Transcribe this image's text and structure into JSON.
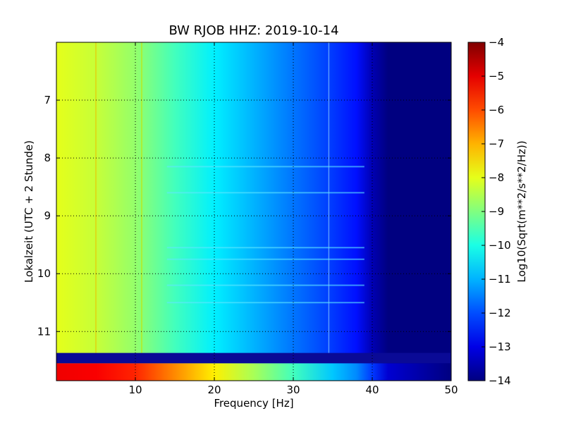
{
  "chart_data": {
    "type": "heatmap",
    "title": "BW RJOB HHZ: 2019-10-14",
    "xlabel": "Frequency [Hz]",
    "ylabel": "Lokalzeit (UTC + 2 Stunde)",
    "xlim": [
      0,
      50
    ],
    "ylim": [
      11.85,
      6.0
    ],
    "x_ticks": [
      10,
      20,
      30,
      40,
      50
    ],
    "y_ticks": [
      7,
      8,
      9,
      10,
      11
    ],
    "grid": true,
    "colormap": "jet",
    "colorbar": {
      "label": "Log10(Sqrt(m**2/s**2/Hz))",
      "range": [
        -14,
        -4
      ],
      "ticks": [
        -4,
        -5,
        -6,
        -7,
        -8,
        -9,
        -10,
        -11,
        -12,
        -13,
        -14
      ]
    },
    "profile_frequency_hz": [
      0,
      5,
      10,
      15,
      20,
      25,
      30,
      35,
      38,
      40,
      42,
      50
    ],
    "profile_log10_level": [
      -8.0,
      -8.3,
      -8.8,
      -9.6,
      -10.4,
      -11.0,
      -11.6,
      -12.2,
      -12.6,
      -13.5,
      -14.0,
      -14.0
    ],
    "late_segment_log10_level": [
      -5.1,
      -5.2,
      -5.6,
      -6.6,
      -7.6,
      -8.6,
      -9.6,
      -10.8,
      -11.4,
      -12.2,
      -13.2,
      -14.0
    ],
    "data_gap_time": [
      11.37,
      11.55
    ],
    "late_segment_time": [
      11.55,
      11.85
    ],
    "line_feature_hz": [
      5,
      10.8,
      34.5
    ],
    "event_streaks_time": [
      8.15,
      8.6,
      9.55,
      9.75,
      10.2,
      10.5
    ]
  }
}
